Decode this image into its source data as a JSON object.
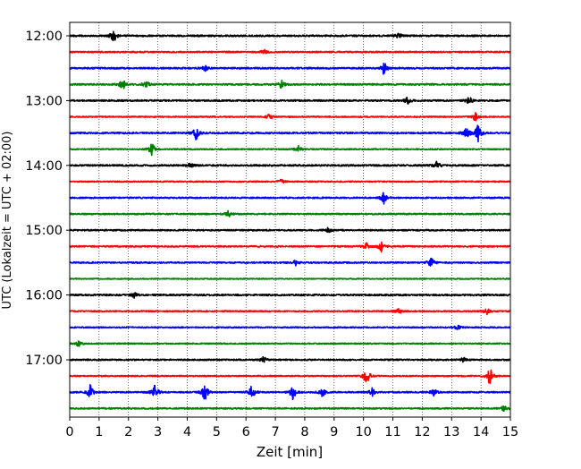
{
  "chart_data": {
    "type": "line",
    "title": "",
    "xlabel": "Zeit  [min]",
    "ylabel": "UTC (Lokalzeit = UTC + 02:00)",
    "xlim": [
      0,
      15
    ],
    "x_ticks": [
      "0",
      "1",
      "2",
      "3",
      "4",
      "5",
      "6",
      "7",
      "8",
      "9",
      "10",
      "11",
      "12",
      "13",
      "14",
      "15"
    ],
    "y_ticks": [
      {
        "label": "12:00",
        "trace": 0
      },
      {
        "label": "13:00",
        "trace": 4
      },
      {
        "label": "14:00",
        "trace": 8
      },
      {
        "label": "15:00",
        "trace": 12
      },
      {
        "label": "16:00",
        "trace": 16
      },
      {
        "label": "17:00",
        "trace": 20
      }
    ],
    "grid": "vertical dotted",
    "trace_interval_min": 15,
    "color_cycle": [
      "#000000",
      "#ff0000",
      "#0000ff",
      "#008000"
    ],
    "traces": [
      {
        "start": "12:00",
        "noise": 0.8,
        "events": [
          [
            1.5,
            2.2
          ],
          [
            11.2,
            0.9
          ]
        ]
      },
      {
        "start": "12:15",
        "noise": 0.7,
        "events": [
          [
            6.6,
            1.2
          ]
        ]
      },
      {
        "start": "12:30",
        "noise": 0.8,
        "events": [
          [
            4.6,
            1.0
          ],
          [
            10.7,
            2.4
          ]
        ]
      },
      {
        "start": "12:45",
        "noise": 0.8,
        "events": [
          [
            1.8,
            2.0
          ],
          [
            2.6,
            1.1
          ],
          [
            7.2,
            1.5
          ]
        ]
      },
      {
        "start": "13:00",
        "noise": 0.8,
        "events": [
          [
            11.5,
            1.1
          ],
          [
            13.6,
            1.3
          ]
        ]
      },
      {
        "start": "13:15",
        "noise": 0.6,
        "events": [
          [
            6.8,
            1.2
          ],
          [
            13.8,
            1.4
          ]
        ]
      },
      {
        "start": "13:30",
        "noise": 0.8,
        "events": [
          [
            4.3,
            2.2
          ],
          [
            13.5,
            2.2
          ],
          [
            13.9,
            2.8
          ]
        ]
      },
      {
        "start": "13:45",
        "noise": 0.6,
        "events": [
          [
            2.8,
            2.2
          ],
          [
            7.8,
            1.2
          ]
        ]
      },
      {
        "start": "14:00",
        "noise": 0.8,
        "events": [
          [
            4.1,
            0.8
          ],
          [
            12.5,
            1.3
          ]
        ]
      },
      {
        "start": "14:15",
        "noise": 0.6,
        "events": [
          [
            7.2,
            0.9
          ]
        ]
      },
      {
        "start": "14:30",
        "noise": 0.7,
        "events": [
          [
            10.7,
            2.4
          ]
        ]
      },
      {
        "start": "14:45",
        "noise": 0.7,
        "events": [
          [
            5.4,
            1.0
          ]
        ]
      },
      {
        "start": "15:00",
        "noise": 0.7,
        "events": [
          [
            8.8,
            0.8
          ]
        ]
      },
      {
        "start": "15:15",
        "noise": 0.7,
        "events": [
          [
            10.1,
            1.2
          ],
          [
            10.6,
            1.8
          ]
        ]
      },
      {
        "start": "15:30",
        "noise": 0.7,
        "events": [
          [
            7.7,
            0.9
          ],
          [
            12.3,
            1.8
          ]
        ]
      },
      {
        "start": "15:45",
        "noise": 0.5,
        "events": []
      },
      {
        "start": "16:00",
        "noise": 0.8,
        "events": [
          [
            2.2,
            0.9
          ]
        ]
      },
      {
        "start": "16:15",
        "noise": 0.6,
        "events": [
          [
            11.2,
            1.2
          ],
          [
            14.2,
            1.1
          ]
        ]
      },
      {
        "start": "16:30",
        "noise": 0.6,
        "events": [
          [
            13.2,
            0.9
          ]
        ]
      },
      {
        "start": "16:45",
        "noise": 0.6,
        "events": [
          [
            0.3,
            1.0
          ]
        ]
      },
      {
        "start": "17:00",
        "noise": 0.7,
        "events": [
          [
            6.6,
            1.0
          ],
          [
            13.4,
            0.9
          ]
        ]
      },
      {
        "start": "17:15",
        "noise": 0.6,
        "events": [
          [
            10.1,
            3.0
          ],
          [
            14.3,
            3.4
          ]
        ]
      },
      {
        "start": "17:30",
        "noise": 0.7,
        "events": [
          [
            0.7,
            2.5
          ],
          [
            2.9,
            2.6
          ],
          [
            4.6,
            3.0
          ],
          [
            6.2,
            2.4
          ],
          [
            7.6,
            2.6
          ],
          [
            8.6,
            1.6
          ],
          [
            10.3,
            1.4
          ],
          [
            12.4,
            1.3
          ]
        ]
      },
      {
        "start": "17:45",
        "noise": 0.7,
        "events": [
          [
            14.8,
            1.0
          ]
        ]
      }
    ]
  }
}
